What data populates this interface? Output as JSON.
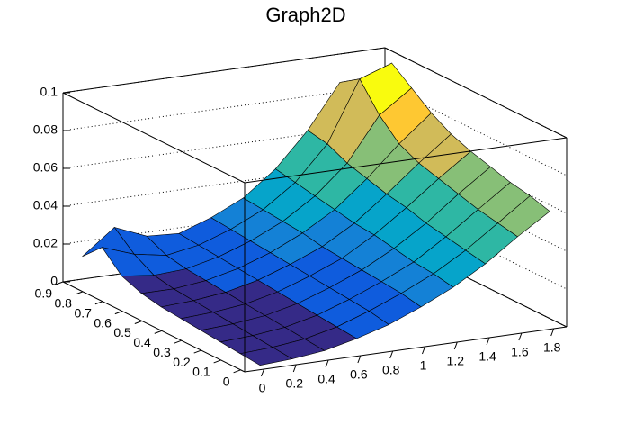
{
  "chart_data": {
    "type": "surface",
    "title": "Graph2D",
    "x": [
      0,
      0.2,
      0.4,
      0.6,
      0.8,
      1,
      1.2,
      1.4,
      1.6,
      1.8
    ],
    "y": [
      0,
      0.1,
      0.2,
      0.3,
      0.4,
      0.5,
      0.6,
      0.7,
      0.8,
      0.9
    ],
    "z": [
      [
        0.001,
        0.002,
        0.004,
        0.008,
        0.013,
        0.02,
        0.028,
        0.038,
        0.05,
        0.061
      ],
      [
        0.002,
        0.003,
        0.005,
        0.009,
        0.015,
        0.022,
        0.03,
        0.04,
        0.052,
        0.064
      ],
      [
        0.003,
        0.004,
        0.006,
        0.01,
        0.016,
        0.023,
        0.031,
        0.042,
        0.054,
        0.066
      ],
      [
        0.004,
        0.005,
        0.007,
        0.011,
        0.017,
        0.024,
        0.033,
        0.044,
        0.057,
        0.069
      ],
      [
        0.005,
        0.006,
        0.008,
        0.012,
        0.018,
        0.025,
        0.035,
        0.047,
        0.06,
        0.072
      ],
      [
        0.006,
        0.007,
        0.009,
        0.013,
        0.019,
        0.026,
        0.036,
        0.049,
        0.063,
        0.076
      ],
      [
        0.008,
        0.008,
        0.01,
        0.014,
        0.02,
        0.028,
        0.038,
        0.052,
        0.068,
        0.082
      ],
      [
        0.012,
        0.01,
        0.011,
        0.015,
        0.021,
        0.029,
        0.04,
        0.055,
        0.078,
        0.09
      ],
      [
        0.022,
        0.016,
        0.013,
        0.016,
        0.022,
        0.03,
        0.042,
        0.06,
        0.092,
        0.098
      ],
      [
        0.012,
        0.025,
        0.018,
        0.017,
        0.023,
        0.031,
        0.044,
        0.062,
        0.085,
        0.06
      ]
    ],
    "xlim": [
      -0.12,
      1.88
    ],
    "ylim": [
      -0.02,
      0.9
    ],
    "zlim": [
      0,
      0.1
    ],
    "xticks": [
      0,
      0.2,
      0.4,
      0.6,
      0.8,
      1,
      1.2,
      1.4,
      1.6,
      1.8
    ],
    "yticks": [
      0,
      0.1,
      0.2,
      0.3,
      0.4,
      0.5,
      0.6,
      0.7,
      0.8,
      0.9
    ],
    "zticks": [
      0,
      0.02,
      0.04,
      0.06,
      0.08,
      0.1
    ],
    "grid": true,
    "palette": [
      "#352a87",
      "#0f5cdd",
      "#1481d6",
      "#06a4ca",
      "#2eb7a4",
      "#87bf77",
      "#d1bb59",
      "#fec832",
      "#f9fb0e"
    ]
  }
}
